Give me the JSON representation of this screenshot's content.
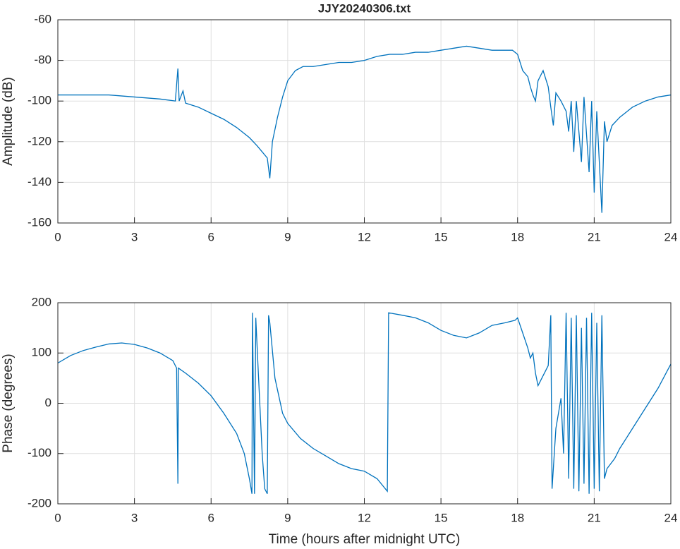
{
  "chart_data": [
    {
      "type": "line",
      "title": "JJY20240306.txt",
      "ylabel": "Amplitude (dB)",
      "x": [
        0,
        1,
        2,
        3,
        4,
        4.6,
        4.7,
        4.75,
        4.9,
        5,
        5.5,
        6,
        6.5,
        7,
        7.5,
        7.8,
        8,
        8.2,
        8.3,
        8.4,
        8.6,
        8.8,
        9,
        9.3,
        9.6,
        10,
        10.5,
        11,
        11.5,
        12,
        12.5,
        13,
        13.5,
        14,
        14.5,
        15,
        15.5,
        16,
        16.5,
        17,
        17.5,
        17.8,
        18,
        18.2,
        18.4,
        18.5,
        18.6,
        18.7,
        18.8,
        19,
        19.2,
        19.3,
        19.4,
        19.5,
        19.7,
        19.9,
        20,
        20.1,
        20.2,
        20.3,
        20.5,
        20.6,
        20.8,
        20.9,
        21,
        21.1,
        21.3,
        21.4,
        21.5,
        21.7,
        22,
        22.5,
        23,
        23.5,
        24
      ],
      "series": [
        {
          "color": "#0072bd",
          "values": [
            -97,
            -97,
            -97,
            -98,
            -99,
            -100,
            -84,
            -100,
            -95,
            -101,
            -103,
            -106,
            -109,
            -113,
            -118,
            -122,
            -125,
            -128,
            -138,
            -120,
            -108,
            -98,
            -90,
            -85,
            -83,
            -83,
            -82,
            -81,
            -81,
            -80,
            -78,
            -77,
            -77,
            -76,
            -76,
            -75,
            -74,
            -73,
            -74,
            -75,
            -75,
            -75,
            -77,
            -85,
            -88,
            -93,
            -97,
            -100,
            -90,
            -85,
            -93,
            -103,
            -112,
            -96,
            -100,
            -105,
            -115,
            -100,
            -125,
            -100,
            -130,
            -98,
            -135,
            -100,
            -145,
            -105,
            -155,
            -110,
            -120,
            -112,
            -108,
            -103,
            -100,
            -98,
            -97
          ]
        }
      ],
      "xlim": [
        0,
        24
      ],
      "xticks": [
        0,
        3,
        6,
        9,
        12,
        15,
        18,
        21,
        24
      ],
      "ylim": [
        -160,
        -60
      ],
      "yticks": [
        -160,
        -140,
        -120,
        -100,
        -80,
        -60
      ],
      "grid": true
    },
    {
      "type": "line",
      "xlabel": "Time (hours after midnight UTC)",
      "ylabel": "Phase (degrees)",
      "x": [
        0,
        0.5,
        1,
        1.5,
        2,
        2.5,
        3,
        3.5,
        4,
        4.5,
        4.65,
        4.7,
        4.72,
        5,
        5.5,
        6,
        6.5,
        7,
        7.3,
        7.5,
        7.6,
        7.62,
        7.7,
        7.75,
        7.85,
        8,
        8.1,
        8.2,
        8.25,
        8.3,
        8.5,
        8.8,
        9,
        9.5,
        10,
        10.5,
        11,
        11.5,
        12,
        12.5,
        12.9,
        12.95,
        13.5,
        14,
        14.5,
        15,
        15.5,
        16,
        16.5,
        17,
        17.5,
        17.9,
        18,
        18.2,
        18.4,
        18.5,
        18.6,
        18.7,
        18.8,
        19,
        19.2,
        19.3,
        19.35,
        19.5,
        19.7,
        19.8,
        19.9,
        20,
        20.1,
        20.2,
        20.3,
        20.4,
        20.5,
        20.6,
        20.7,
        20.8,
        20.9,
        21,
        21.1,
        21.2,
        21.3,
        21.4,
        21.5,
        21.8,
        22,
        22.5,
        23,
        23.5,
        24
      ],
      "series": [
        {
          "color": "#0072bd",
          "values": [
            80,
            95,
            105,
            112,
            118,
            120,
            117,
            110,
            100,
            85,
            70,
            -160,
            70,
            60,
            40,
            15,
            -20,
            -60,
            -100,
            -150,
            -180,
            180,
            -180,
            170,
            60,
            -100,
            -170,
            -180,
            175,
            160,
            50,
            -20,
            -40,
            -70,
            -90,
            -105,
            -120,
            -130,
            -135,
            -150,
            -175,
            180,
            175,
            170,
            160,
            145,
            135,
            130,
            140,
            155,
            160,
            165,
            170,
            140,
            110,
            90,
            100,
            60,
            35,
            55,
            75,
            175,
            -170,
            -50,
            10,
            -100,
            180,
            -150,
            170,
            -170,
            175,
            -175,
            150,
            -160,
            170,
            -180,
            180,
            -170,
            160,
            -175,
            175,
            -150,
            -130,
            -110,
            -90,
            -50,
            -10,
            30,
            78
          ]
        }
      ],
      "xlim": [
        0,
        24
      ],
      "xticks": [
        0,
        3,
        6,
        9,
        12,
        15,
        18,
        21,
        24
      ],
      "ylim": [
        -200,
        200
      ],
      "yticks": [
        -200,
        -100,
        0,
        100,
        200
      ],
      "grid": true
    }
  ]
}
